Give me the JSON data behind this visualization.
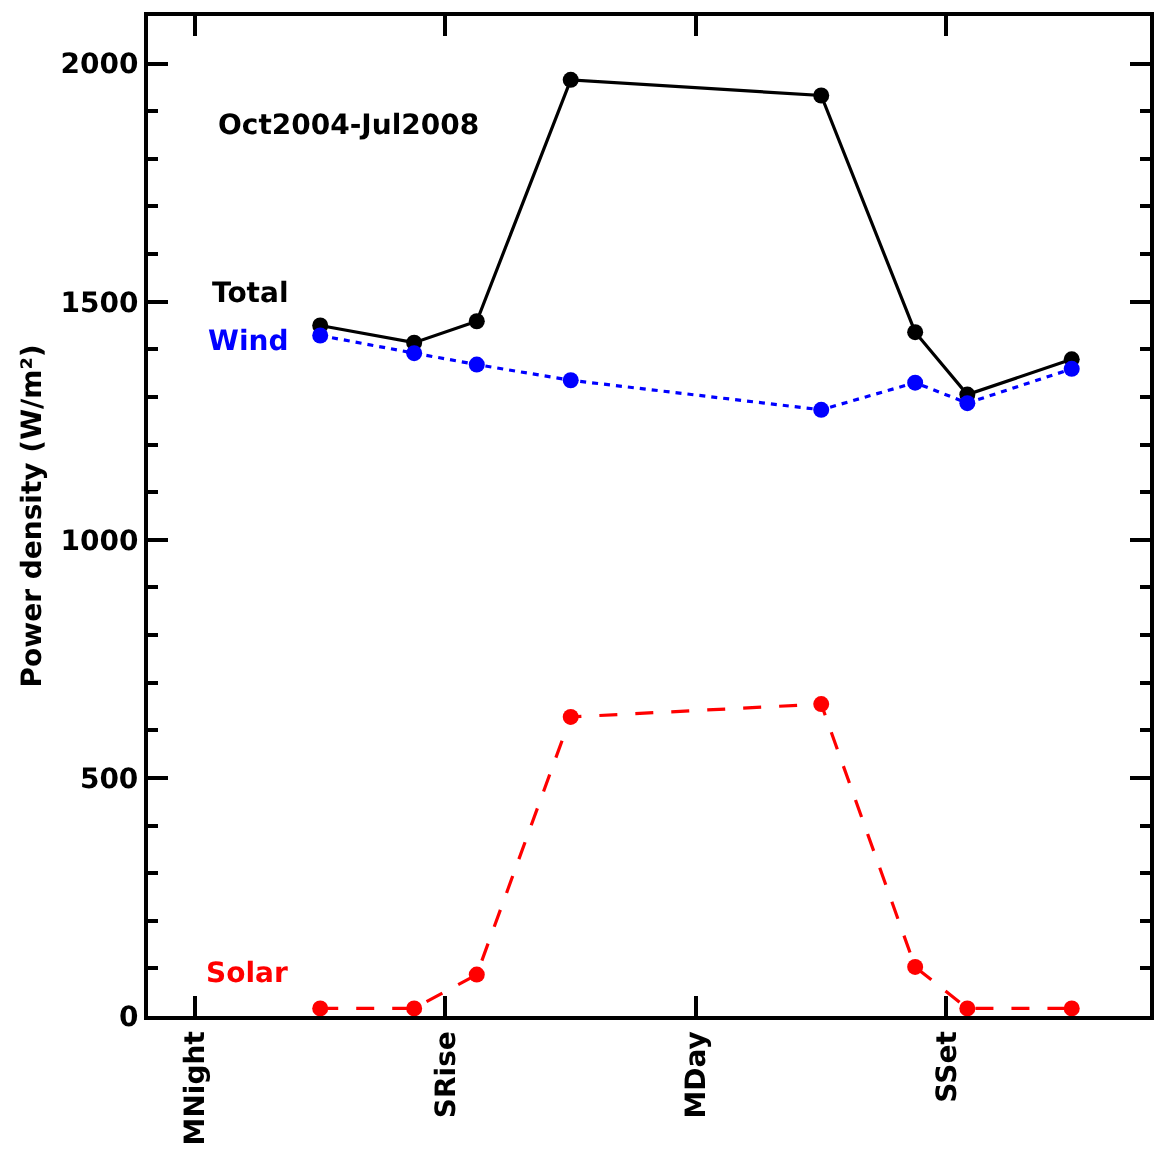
{
  "chart_data": {
    "type": "line",
    "annotations": [
      "Oct2004-Jul2008"
    ],
    "ylabel": "Power density (W/m²)",
    "categories": [
      null,
      null,
      null,
      null,
      "MNight",
      null,
      null,
      null,
      null,
      null,
      null,
      null,
      null,
      null,
      null,
      null,
      null,
      null,
      null,
      null,
      null,
      null,
      null,
      null,
      null,
      null,
      null,
      null,
      "SRise",
      null,
      null,
      null,
      null,
      null,
      null,
      null,
      null,
      null,
      null,
      null,
      null,
      null,
      null,
      null,
      null,
      null,
      null,
      null,
      null,
      null,
      null,
      null,
      "MDay",
      null,
      null,
      null,
      null,
      null,
      null,
      null,
      null,
      null,
      null,
      null,
      null,
      null,
      null,
      null,
      null,
      null,
      null,
      null,
      null,
      null,
      null,
      null,
      "SSet",
      null,
      null,
      null,
      null,
      null,
      null,
      null,
      null,
      null,
      null,
      null,
      null,
      null,
      null,
      null,
      null,
      null,
      null,
      null
    ],
    "ylim": [
      0,
      2100
    ],
    "yticks": [
      0,
      500,
      1000,
      1500,
      2000
    ],
    "marker": "circle",
    "series": [
      {
        "name": "Total",
        "color": "#000000",
        "line_style": "solid",
        "values": [
          null,
          null,
          null,
          null,
          null,
          null,
          null,
          null,
          null,
          null,
          null,
          null,
          null,
          null,
          null,
          null,
          1450,
          null,
          null,
          null,
          null,
          null,
          null,
          null,
          null,
          1414,
          null,
          null,
          null,
          null,
          null,
          1459,
          null,
          null,
          null,
          null,
          null,
          null,
          null,
          null,
          1966,
          null,
          null,
          null,
          null,
          null,
          null,
          null,
          null,
          null,
          null,
          null,
          null,
          null,
          null,
          null,
          null,
          null,
          null,
          null,
          null,
          null,
          null,
          null,
          1933,
          null,
          null,
          null,
          null,
          null,
          null,
          null,
          null,
          1436,
          null,
          null,
          null,
          null,
          1305,
          null,
          null,
          null,
          null,
          null,
          null,
          null,
          null,
          null,
          1379,
          null,
          null,
          null,
          null,
          null,
          null,
          null
        ]
      },
      {
        "name": "Wind",
        "color": "#0000ff",
        "line_style": "dotted",
        "values": [
          null,
          null,
          null,
          null,
          null,
          null,
          null,
          null,
          null,
          null,
          null,
          null,
          null,
          null,
          null,
          null,
          1429,
          null,
          null,
          null,
          null,
          null,
          null,
          null,
          null,
          1392,
          null,
          null,
          null,
          null,
          null,
          1368,
          null,
          null,
          null,
          null,
          null,
          null,
          null,
          null,
          1335,
          null,
          null,
          null,
          null,
          null,
          null,
          null,
          null,
          null,
          null,
          null,
          null,
          null,
          null,
          null,
          null,
          null,
          null,
          null,
          null,
          null,
          null,
          null,
          1273,
          null,
          null,
          null,
          null,
          null,
          null,
          null,
          null,
          1330,
          null,
          null,
          null,
          null,
          1287,
          null,
          null,
          null,
          null,
          null,
          null,
          null,
          null,
          null,
          1359,
          null,
          null,
          null,
          null,
          null,
          null,
          null
        ]
      },
      {
        "name": "Solar",
        "color": "#ff0000",
        "line_style": "dashed",
        "values": [
          null,
          null,
          null,
          null,
          null,
          null,
          null,
          null,
          null,
          null,
          null,
          null,
          null,
          null,
          null,
          null,
          16,
          null,
          null,
          null,
          null,
          null,
          null,
          null,
          null,
          16,
          null,
          null,
          null,
          null,
          null,
          87,
          null,
          null,
          null,
          null,
          null,
          null,
          null,
          null,
          628,
          null,
          null,
          null,
          null,
          null,
          null,
          null,
          null,
          null,
          null,
          null,
          null,
          null,
          null,
          null,
          null,
          null,
          null,
          null,
          null,
          null,
          null,
          null,
          655,
          null,
          null,
          null,
          null,
          null,
          null,
          null,
          null,
          103,
          null,
          null,
          null,
          null,
          16,
          null,
          null,
          null,
          null,
          null,
          null,
          null,
          null,
          null,
          16,
          null,
          null,
          null,
          null,
          null,
          null,
          null
        ]
      }
    ]
  }
}
